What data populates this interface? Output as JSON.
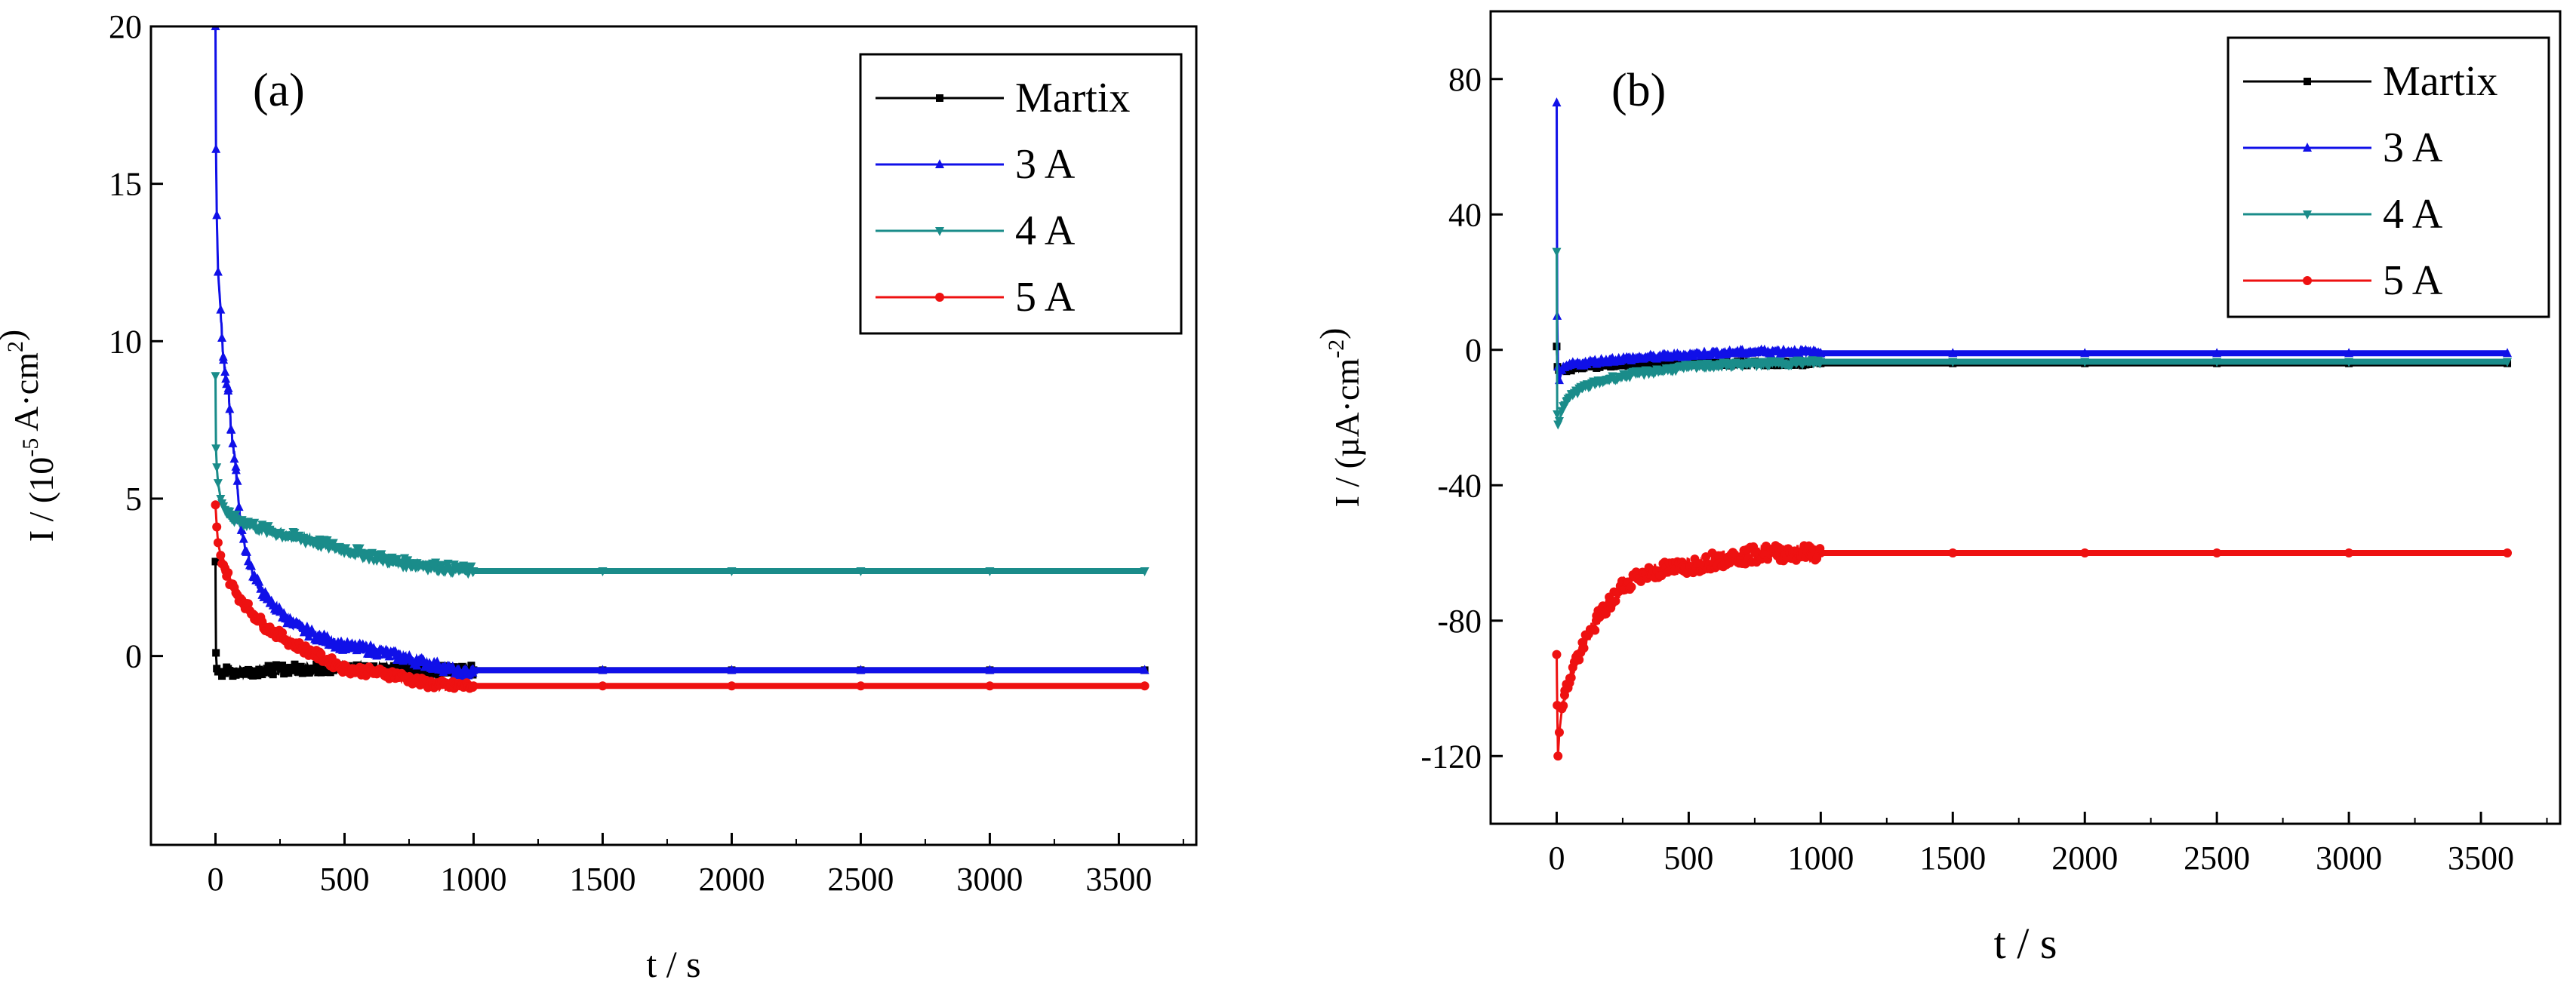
{
  "figure": {
    "description_visible": ""
  },
  "chart_data": [
    {
      "panel_label": "(a)",
      "type": "line",
      "xlabel": "t / s",
      "ylabel": {
        "prefix": "I / (10",
        "exp": "-5",
        "mid": " A·cm",
        "exp2": "2",
        "suffix": ")"
      },
      "xlim": [
        -250,
        3800
      ],
      "ylim": [
        -6,
        20
      ],
      "xticks": [
        0,
        500,
        1000,
        1500,
        2000,
        2500,
        3000,
        3500
      ],
      "xtick_labels": [
        "0",
        "500",
        "1000",
        "1500",
        "2000",
        "2500",
        "3000",
        "3500"
      ],
      "yticks": [
        0,
        5,
        10,
        15,
        20
      ],
      "ytick_labels": [
        "0",
        "5",
        "10",
        "15",
        "20"
      ],
      "legend": {
        "position": "top-right",
        "entries": [
          "Martix",
          "3 A",
          "4 A",
          "5 A"
        ]
      },
      "series": [
        {
          "name": "Martix",
          "color": "#000000",
          "marker": "square",
          "x": [
            0,
            2,
            5,
            10,
            30,
            60,
            100,
            200,
            300,
            400,
            500,
            600,
            700,
            800,
            900,
            1000,
            1500,
            2000,
            2500,
            3000,
            3600
          ],
          "y": [
            3.0,
            0.1,
            -0.4,
            -0.5,
            -0.5,
            -0.5,
            -0.5,
            -0.45,
            -0.4,
            -0.4,
            -0.4,
            -0.4,
            -0.4,
            -0.45,
            -0.45,
            -0.45,
            -0.45,
            -0.45,
            -0.45,
            -0.45,
            -0.45
          ]
        },
        {
          "name": "3 A",
          "color": "#1010e8",
          "marker": "triangle-up",
          "x": [
            0,
            2,
            5,
            10,
            20,
            30,
            40,
            50,
            60,
            80,
            100,
            120,
            150,
            200,
            250,
            300,
            400,
            500,
            600,
            700,
            800,
            900,
            950,
            1000,
            1500,
            2000,
            2500,
            3000,
            3600
          ],
          "y": [
            20,
            16.1,
            14.0,
            12.2,
            11.0,
            9.5,
            8.8,
            8.5,
            7.2,
            5.9,
            4.0,
            3.3,
            2.5,
            1.8,
            1.4,
            1.0,
            0.6,
            0.3,
            0.2,
            0.0,
            -0.2,
            -0.4,
            -0.6,
            -0.45,
            -0.45,
            -0.45,
            -0.45,
            -0.45,
            -0.45
          ]
        },
        {
          "name": "4 A",
          "color": "#1a8c8a",
          "marker": "triangle-down",
          "x": [
            0,
            2,
            5,
            10,
            20,
            40,
            60,
            100,
            200,
            300,
            400,
            500,
            600,
            700,
            800,
            900,
            1000,
            1500,
            2000,
            2500,
            3000,
            3600
          ],
          "y": [
            8.9,
            6.6,
            6.0,
            5.5,
            5.0,
            4.6,
            4.4,
            4.3,
            4.0,
            3.8,
            3.6,
            3.4,
            3.2,
            3.0,
            2.9,
            2.8,
            2.7,
            2.7,
            2.7,
            2.7,
            2.7,
            2.7
          ]
        },
        {
          "name": "5 A",
          "color": "#ee1111",
          "marker": "circle",
          "x": [
            0,
            5,
            10,
            20,
            40,
            60,
            80,
            100,
            150,
            200,
            300,
            400,
            500,
            600,
            700,
            800,
            900,
            1000,
            1500,
            2000,
            2500,
            3000,
            3600
          ],
          "y": [
            4.8,
            4.1,
            3.6,
            3.2,
            2.7,
            2.3,
            2.0,
            1.8,
            1.3,
            0.9,
            0.4,
            0.0,
            -0.4,
            -0.5,
            -0.6,
            -0.85,
            -0.95,
            -0.95,
            -0.95,
            -0.95,
            -0.95,
            -0.95,
            -0.95
          ]
        }
      ]
    },
    {
      "panel_label": "(b)",
      "type": "line",
      "xlabel": "t / s",
      "ylabel": {
        "prefix": "I / (µA·cm",
        "exp": "-2",
        "suffix": ")"
      },
      "xlim": [
        -250,
        3800
      ],
      "ylim": [
        -140,
        100
      ],
      "xticks": [
        0,
        500,
        1000,
        1500,
        2000,
        2500,
        3000,
        3500
      ],
      "xtick_labels": [
        "0",
        "500",
        "1000",
        "1500",
        "2000",
        "2500",
        "3000",
        "3500"
      ],
      "yticks": [
        -120,
        -80,
        -40,
        0,
        40,
        80
      ],
      "ytick_labels": [
        "-120",
        "-80",
        "-40",
        "0",
        "40",
        "80"
      ],
      "legend": {
        "position": "top-right",
        "entries": [
          "Martix",
          "3 A",
          "4 A",
          "5 A"
        ]
      },
      "series": [
        {
          "name": "Martix",
          "color": "#000000",
          "marker": "square",
          "x": [
            0,
            3,
            8,
            20,
            60,
            100,
            200,
            400,
            600,
            800,
            1000,
            1500,
            2000,
            2500,
            3000,
            3600
          ],
          "y": [
            1.0,
            -5.0,
            -6.0,
            -6.0,
            -5.5,
            -5.0,
            -4.5,
            -4.0,
            -4.0,
            -4.0,
            -4.0,
            -4.0,
            -4.0,
            -4.0,
            -4.0,
            -4.0
          ]
        },
        {
          "name": "3 A",
          "color": "#1010e8",
          "marker": "triangle-up",
          "x": [
            0,
            2,
            5,
            10,
            20,
            50,
            100,
            200,
            400,
            600,
            800,
            900,
            1000,
            1500,
            2000,
            2500,
            3000,
            3600
          ],
          "y": [
            73,
            10,
            -5.0,
            -9.0,
            -6.0,
            -4.5,
            -4.0,
            -3.0,
            -2.0,
            -1.0,
            -0.5,
            -0.5,
            -1.0,
            -1.0,
            -1.0,
            -1.0,
            -1.0,
            -1.0
          ]
        },
        {
          "name": "4 A",
          "color": "#1a8c8a",
          "marker": "triangle-down",
          "x": [
            0,
            2,
            5,
            10,
            20,
            40,
            60,
            100,
            200,
            300,
            400,
            500,
            600,
            800,
            1000,
            1500,
            2000,
            2500,
            3000,
            3600
          ],
          "y": [
            29,
            -19,
            -22,
            -21,
            -18,
            -15,
            -13,
            -11,
            -8.5,
            -7.0,
            -6.0,
            -5.0,
            -4.5,
            -4.0,
            -3.5,
            -3.5,
            -3.5,
            -3.5,
            -3.5,
            -3.5
          ]
        },
        {
          "name": "5 A",
          "color": "#ee1111",
          "marker": "circle",
          "x": [
            0,
            2,
            5,
            10,
            20,
            30,
            50,
            70,
            100,
            150,
            200,
            250,
            300,
            400,
            500,
            600,
            700,
            800,
            900,
            1000,
            1500,
            2000,
            2500,
            3000,
            3600
          ],
          "y": [
            -90,
            -105,
            -120,
            -113,
            -106,
            -102,
            -97,
            -92,
            -88,
            -80,
            -75,
            -70,
            -67,
            -65,
            -64,
            -62,
            -61,
            -60,
            -60,
            -60,
            -60,
            -60,
            -60,
            -60,
            -60
          ]
        }
      ]
    }
  ]
}
